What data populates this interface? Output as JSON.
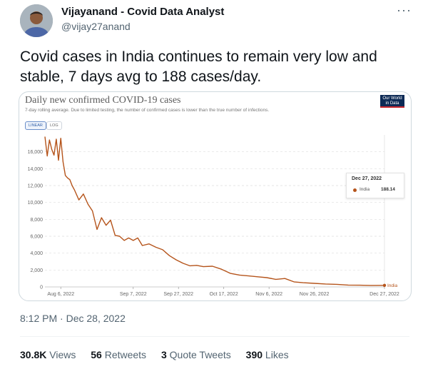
{
  "tweet": {
    "author_name": "Vijayanand - Covid Data Analyst",
    "author_handle": "@vijay27anand",
    "more_icon": "more-icon",
    "text": "Covid cases in India continues to remain very low and stable, 7 days avg to 188 cases/day.",
    "timestamp": "8:12 PM · Dec 28, 2022",
    "stats": {
      "views_count": "30.8K",
      "views_label": "Views",
      "retweets_count": "56",
      "retweets_label": "Retweets",
      "quotes_count": "3",
      "quotes_label": "Quote Tweets",
      "likes_count": "390",
      "likes_label": "Likes"
    }
  },
  "chart_card": {
    "logo_line1": "Our World",
    "logo_line2": "in Data",
    "toggle_linear": "LINEAR",
    "toggle_log": "LOG"
  },
  "chart_data": {
    "type": "line",
    "title": "Daily new confirmed COVID-19 cases",
    "subtitle": "7-day rolling average. Due to limited testing, the number of confirmed cases is lower than the true number of infections.",
    "series": [
      {
        "name": "India",
        "color": "#b5541b",
        "x": [
          "2022-07-30",
          "2022-07-31",
          "2022-08-01",
          "2022-08-02",
          "2022-08-03",
          "2022-08-04",
          "2022-08-05",
          "2022-08-06",
          "2022-08-07",
          "2022-08-08",
          "2022-08-09",
          "2022-08-10",
          "2022-08-11",
          "2022-08-12",
          "2022-08-14",
          "2022-08-16",
          "2022-08-18",
          "2022-08-20",
          "2022-08-22",
          "2022-08-24",
          "2022-08-26",
          "2022-08-28",
          "2022-08-30",
          "2022-09-01",
          "2022-09-03",
          "2022-09-05",
          "2022-09-07",
          "2022-09-09",
          "2022-09-11",
          "2022-09-14",
          "2022-09-17",
          "2022-09-20",
          "2022-09-23",
          "2022-09-26",
          "2022-09-29",
          "2022-10-02",
          "2022-10-05",
          "2022-10-08",
          "2022-10-12",
          "2022-10-16",
          "2022-10-20",
          "2022-10-24",
          "2022-10-28",
          "2022-11-01",
          "2022-11-05",
          "2022-11-09",
          "2022-11-13",
          "2022-11-17",
          "2022-11-21",
          "2022-11-26",
          "2022-12-01",
          "2022-12-06",
          "2022-12-11",
          "2022-12-16",
          "2022-12-21",
          "2022-12-27"
        ],
        "y": [
          17800,
          15500,
          17400,
          16300,
          15600,
          17500,
          15000,
          17600,
          14800,
          13200,
          12900,
          12700,
          12000,
          11500,
          10300,
          11000,
          9800,
          9000,
          6800,
          8200,
          7300,
          7900,
          6100,
          6000,
          5500,
          5800,
          5500,
          5800,
          4900,
          5100,
          4700,
          4400,
          3700,
          3200,
          2800,
          2500,
          2550,
          2400,
          2450,
          2100,
          1600,
          1400,
          1300,
          1200,
          1100,
          900,
          1000,
          600,
          500,
          420,
          350,
          300,
          220,
          200,
          180,
          188
        ]
      }
    ],
    "x_ticks": [
      "Aug 6, 2022",
      "Sep 7, 2022",
      "Sep 27, 2022",
      "Oct 17, 2022",
      "Nov 6, 2022",
      "Nov 26, 2022",
      "Dec 27, 2022"
    ],
    "x_tick_values": [
      "2022-08-06",
      "2022-09-07",
      "2022-09-27",
      "2022-10-17",
      "2022-11-06",
      "2022-11-26",
      "2022-12-27"
    ],
    "x_range": [
      "2022-07-30",
      "2022-12-27"
    ],
    "y_ticks": [
      "0",
      "2,000",
      "4,000",
      "6,000",
      "8,000",
      "10,000",
      "12,000",
      "14,000",
      "16,000"
    ],
    "y_tick_values": [
      0,
      2000,
      4000,
      6000,
      8000,
      10000,
      12000,
      14000,
      16000
    ],
    "ylim": [
      0,
      18000
    ],
    "grid": true,
    "end_label": "India",
    "tooltip": {
      "date": "Dec 27, 2022",
      "series": "India",
      "value": "188.14"
    }
  }
}
